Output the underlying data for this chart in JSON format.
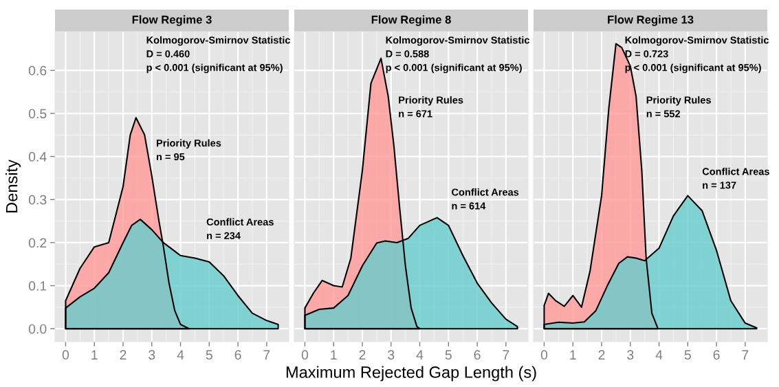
{
  "chart_data": [
    {
      "type": "area",
      "title": "Flow Regime 3",
      "ylabel": "Density",
      "xlim": [
        -0.37,
        7.77
      ],
      "ylim": [
        -0.03,
        0.69
      ],
      "xticks": [
        0,
        1,
        2,
        3,
        4,
        5,
        6,
        7
      ],
      "yticks": [
        {
          "value": 0,
          "label": "0.0"
        },
        {
          "value": 0.1,
          "label": "0.1"
        },
        {
          "value": 0.2,
          "label": "0.2"
        },
        {
          "value": 0.3,
          "label": "0.3"
        },
        {
          "value": 0.4,
          "label": "0.4"
        },
        {
          "value": 0.5,
          "label": "0.5"
        },
        {
          "value": 0.6,
          "label": "0.6"
        }
      ],
      "grid": true,
      "annotations": [
        "Kolmogorov-Smirnov Statistic\nD = 0.460\np < 0.001 (significant at 95%)",
        "Priority Rules\nn = 95",
        "Conflict Areas\nn = 234"
      ],
      "series": [
        {
          "color": "#ff9999",
          "x": [
            0,
            0.5,
            1,
            1.5,
            2,
            2.25,
            2.45,
            2.75,
            3,
            3.25,
            3.4,
            3.6,
            3.8,
            4.0,
            4.3
          ],
          "values": [
            0.065,
            0.14,
            0.19,
            0.2,
            0.33,
            0.45,
            0.49,
            0.45,
            0.355,
            0.25,
            0.193,
            0.106,
            0.042,
            0.01,
            0.0
          ]
        },
        {
          "color": "#66cccc",
          "x": [
            0,
            0.5,
            1,
            1.5,
            2,
            2.3,
            2.6,
            3,
            3.4,
            4,
            4.5,
            5,
            5.5,
            6,
            6.5,
            7,
            7.4
          ],
          "values": [
            0.048,
            0.074,
            0.094,
            0.13,
            0.2,
            0.24,
            0.254,
            0.23,
            0.2,
            0.17,
            0.164,
            0.155,
            0.123,
            0.077,
            0.036,
            0.019,
            0.01
          ]
        }
      ]
    },
    {
      "type": "area",
      "title": "Flow Regime 8",
      "xlabel": "Maximum Rejected Gap Length (s)",
      "xlim": [
        -0.37,
        7.77
      ],
      "ylim": [
        -0.03,
        0.69
      ],
      "xticks": [
        0,
        1,
        2,
        3,
        4,
        5,
        6,
        7
      ],
      "yticks": [
        0,
        0.1,
        0.2,
        0.3,
        0.4,
        0.5,
        0.6
      ],
      "grid": true,
      "tick_labels": "x",
      "annotations": [
        "Kolmogorov-Smirnov Statistic\nD = 0.588\np < 0.001 (significant at 95%)",
        "Priority Rules\nn = 671",
        "Conflict Areas\nn = 614"
      ],
      "series": [
        {
          "color": "#ff9999",
          "x": [
            0,
            0.3,
            0.6,
            1,
            1.3,
            1.6,
            2,
            2.3,
            2.65,
            2.9,
            3.1,
            3.3,
            3.5,
            3.7,
            3.9,
            4.0
          ],
          "values": [
            0.048,
            0.083,
            0.112,
            0.1,
            0.097,
            0.164,
            0.367,
            0.57,
            0.628,
            0.54,
            0.424,
            0.28,
            0.146,
            0.048,
            0.005,
            0.0
          ]
        },
        {
          "color": "#66cccc",
          "x": [
            0,
            0.5,
            1,
            1.5,
            2,
            2.5,
            2.8,
            3.2,
            3.6,
            4,
            4.6,
            5,
            5.5,
            6,
            6.5,
            7,
            7.4
          ],
          "values": [
            0.031,
            0.045,
            0.048,
            0.077,
            0.146,
            0.199,
            0.204,
            0.2,
            0.21,
            0.24,
            0.258,
            0.24,
            0.17,
            0.106,
            0.06,
            0.022,
            0.005
          ]
        }
      ]
    },
    {
      "type": "area",
      "title": "Flow Regime 13",
      "xlim": [
        -0.37,
        7.77
      ],
      "ylim": [
        -0.03,
        0.69
      ],
      "xticks": [
        0,
        1,
        2,
        3,
        4,
        5,
        6,
        7
      ],
      "yticks": [
        0,
        0.1,
        0.2,
        0.3,
        0.4,
        0.5,
        0.6
      ],
      "grid": true,
      "tick_labels": "x",
      "annotations": [
        "Kolmogorov-Smirnov Statistic\nD = 0.723\np < 0.001 (significant at 95%)",
        "Priority Rules\nn = 552",
        "Conflict Areas\nn = 137"
      ],
      "series": [
        {
          "color": "#ff9999",
          "x": [
            0,
            0.15,
            0.4,
            0.7,
            1,
            1.3,
            1.6,
            2,
            2.25,
            2.5,
            2.7,
            3,
            3.2,
            3.4,
            3.55,
            3.75,
            3.95
          ],
          "values": [
            0.054,
            0.082,
            0.065,
            0.052,
            0.077,
            0.05,
            0.135,
            0.309,
            0.511,
            0.662,
            0.653,
            0.61,
            0.54,
            0.367,
            0.164,
            0.036,
            0.002
          ]
        },
        {
          "color": "#66cccc",
          "x": [
            0,
            0.5,
            1,
            1.4,
            1.8,
            2.2,
            2.6,
            2.9,
            3.2,
            3.5,
            4,
            4.5,
            5,
            5.5,
            6,
            6.5,
            7,
            7.4
          ],
          "values": [
            0.01,
            0.015,
            0.013,
            0.016,
            0.042,
            0.1,
            0.152,
            0.167,
            0.164,
            0.158,
            0.187,
            0.262,
            0.309,
            0.274,
            0.182,
            0.065,
            0.013,
            0.002
          ]
        }
      ]
    }
  ]
}
